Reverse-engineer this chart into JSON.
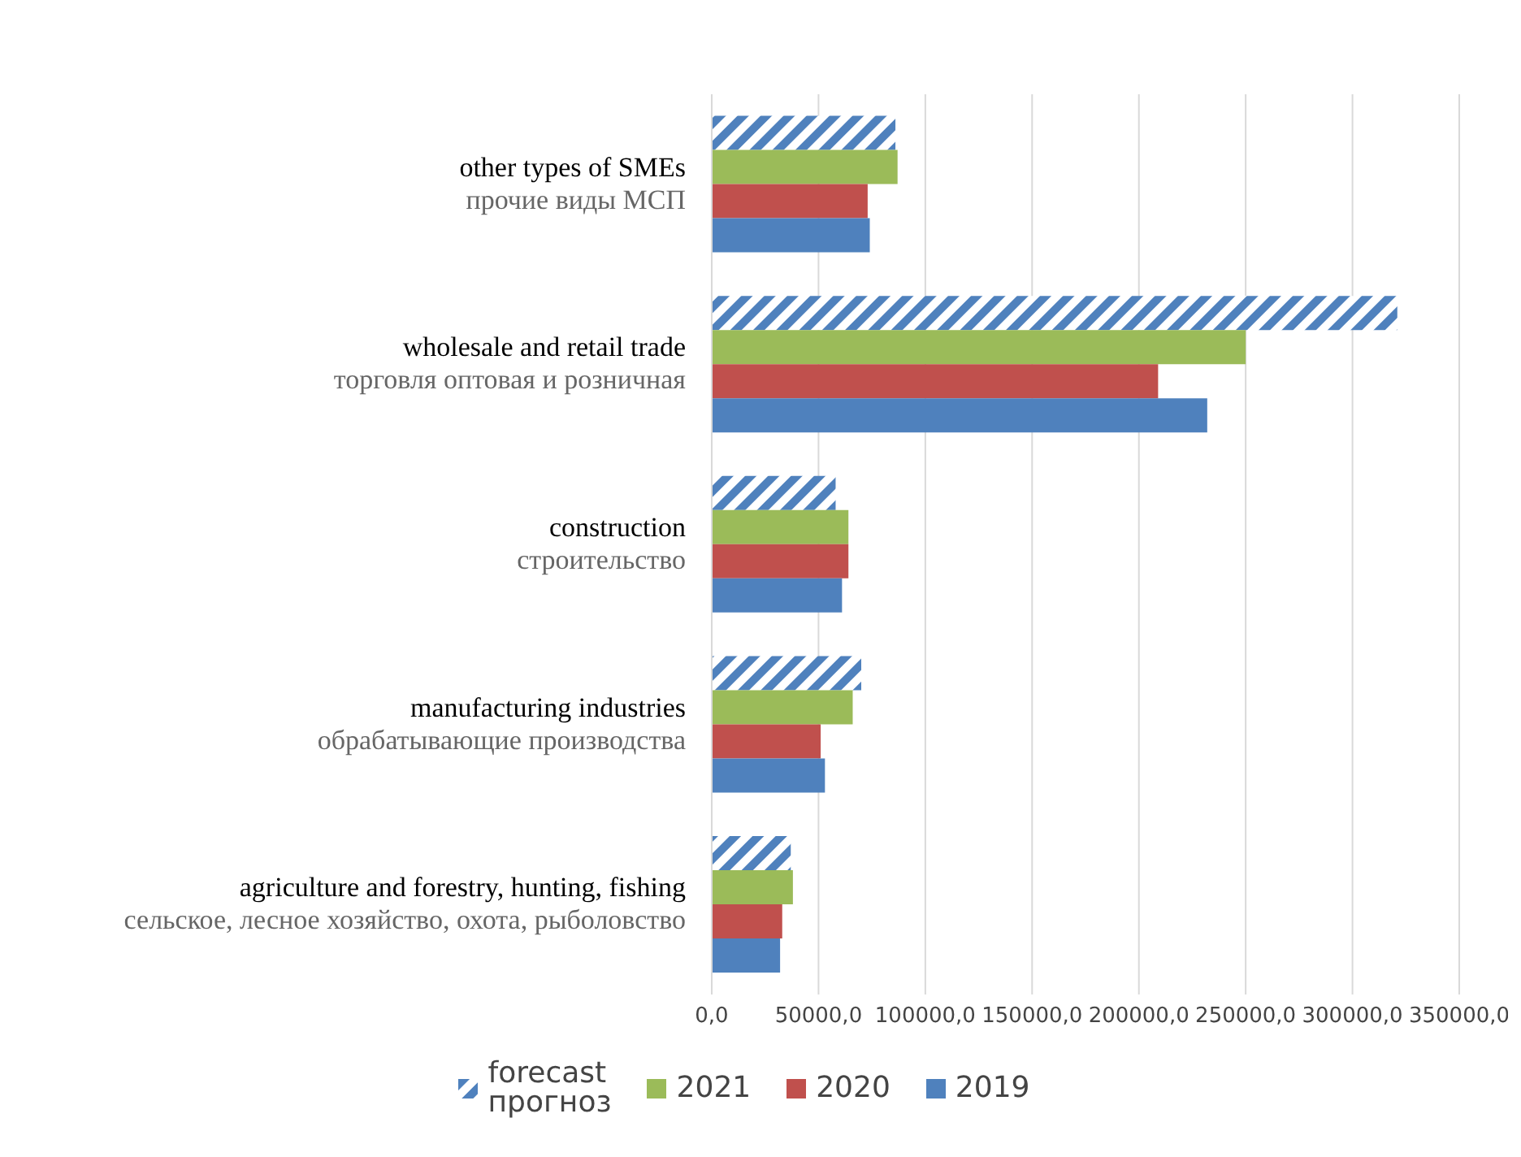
{
  "chart_data": {
    "type": "bar",
    "orientation": "horizontal",
    "categories": [
      "other types of SMEs\nпрочие виды МСП",
      "wholesale and retail trade\nторговля оптовая и розничная",
      "construction\nстроительство",
      "manufacturing industries\nобрабатывающие производства",
      "agriculture and forestry, hunting, fishing\nсельское, лесное хозяйство, охота, рыболовство"
    ],
    "series": [
      {
        "name": "forecast\nпрогноз",
        "color": "#4f81bd",
        "values": [
          86000,
          321000,
          58000,
          70000,
          37000
        ]
      },
      {
        "name": "2021",
        "color": "#9bbb59",
        "values": [
          87000,
          250000,
          64000,
          66000,
          38000
        ]
      },
      {
        "name": "2020",
        "color": "#c0504d",
        "values": [
          73000,
          209000,
          64000,
          51000,
          33000
        ]
      },
      {
        "name": "2019",
        "color": "#4f81bd",
        "values": [
          74000,
          232000,
          61000,
          53000,
          32000
        ]
      }
    ],
    "xlim": [
      0,
      350000
    ],
    "xticks": [
      {
        "value": 0,
        "label": "0,0"
      },
      {
        "value": 50000,
        "label": "50000,0"
      },
      {
        "value": 100000,
        "label": "100000,0"
      },
      {
        "value": 150000,
        "label": "150000,0"
      },
      {
        "value": 200000,
        "label": "200000,0"
      },
      {
        "value": 250000,
        "label": "250000,0"
      },
      {
        "value": 300000,
        "label": "300000,0"
      },
      {
        "value": 350000,
        "label": "350000,0"
      }
    ],
    "grid": "x",
    "legend": "bottom"
  }
}
